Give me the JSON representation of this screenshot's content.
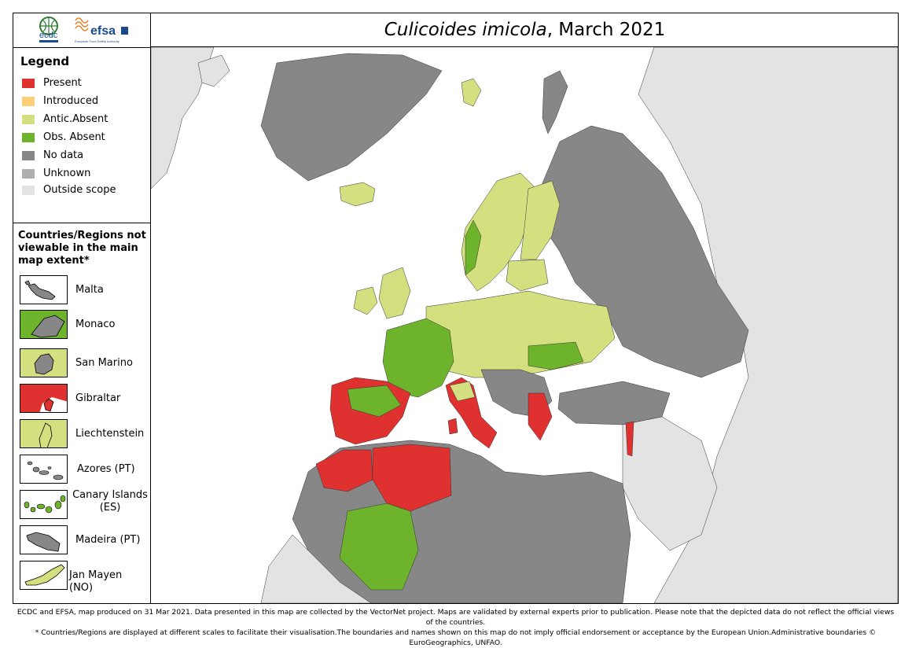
{
  "title": {
    "species": "Culicoides imicola",
    "date": ", March 2021"
  },
  "logos": {
    "ecdc": "ecdc",
    "efsa": "efsa",
    "efsa_sub": "European Food Safety Authority"
  },
  "legend": {
    "title": "Legend",
    "items": [
      {
        "label": "Present",
        "color": "#e03131"
      },
      {
        "label": "Introduced",
        "color": "#fdcf76"
      },
      {
        "label": "Antic.Absent",
        "color": "#d4e07f"
      },
      {
        "label": "Obs. Absent",
        "color": "#6db32c"
      },
      {
        "label": "No data",
        "color": "#878787"
      },
      {
        "label": "Unknown",
        "color": "#aeaeae"
      },
      {
        "label": "Outside scope",
        "color": "#e3e3e3"
      }
    ]
  },
  "extent": {
    "title": "Countries/Regions not viewable in the main map extent*",
    "items": [
      {
        "label": "Malta",
        "color": "#878787"
      },
      {
        "label": "Monaco",
        "color": "#6db32c"
      },
      {
        "label": "San Marino",
        "color": "#d4e07f"
      },
      {
        "label": "Gibraltar",
        "color": "#e03131"
      },
      {
        "label": "Liechtenstein",
        "color": "#d4e07f"
      },
      {
        "label": "Azores (PT)",
        "color": "#878787"
      },
      {
        "label": "Canary Islands (ES)",
        "color": "#6db32c"
      },
      {
        "label": "Madeira (PT)",
        "color": "#878787"
      },
      {
        "label": "Jan Mayen (NO)",
        "color": "#d4e07f"
      }
    ]
  },
  "footer": {
    "line1": "ECDC and EFSA, map produced on 31 Mar 2021. Data presented in this map are collected by the VectorNet project. Maps are validated by external experts prior to publication. Please note that the depicted data do not reflect the official views of the countries.",
    "line2": "* Countries/Regions are displayed at different scales to facilitate their visualisation.The boundaries and names shown on this map do not imply official endorsement or acceptance by the European Union.Administrative boundaries © EuroGeographics, UNFAO."
  }
}
